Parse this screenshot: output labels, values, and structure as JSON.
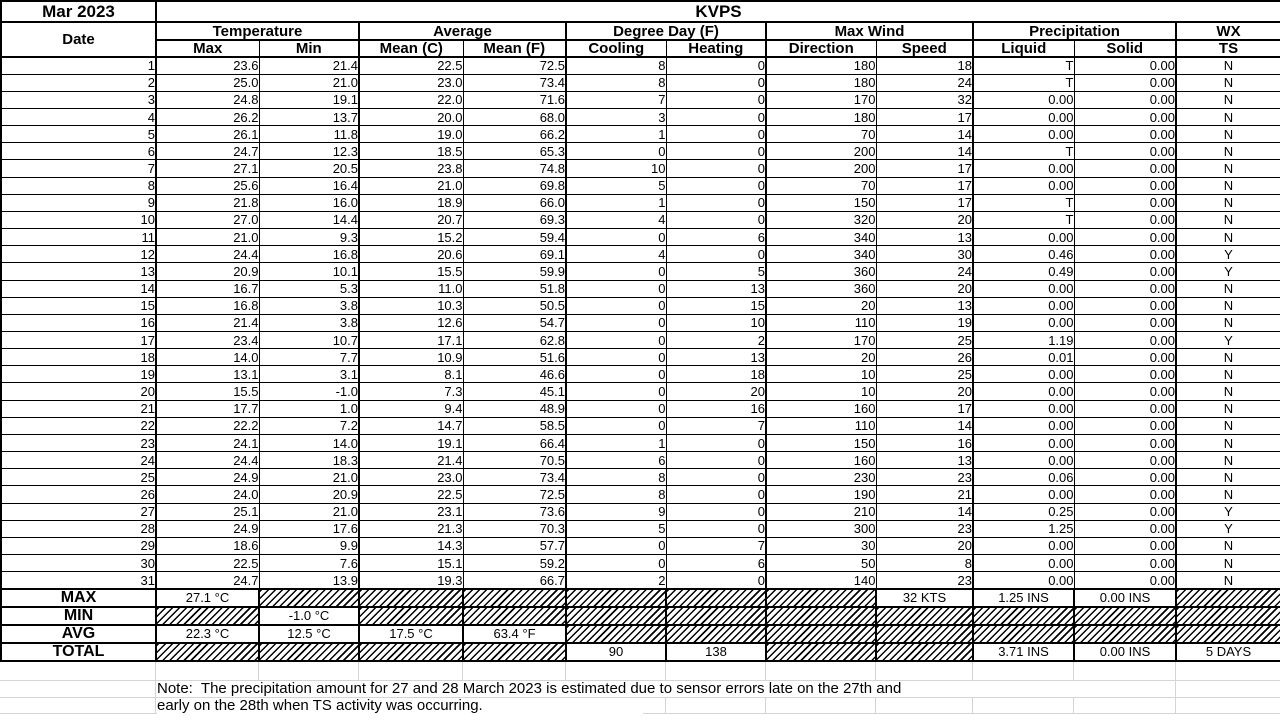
{
  "title": {
    "month": "Mar 2023",
    "station": "KVPS"
  },
  "columns": {
    "date": "Date",
    "groups": [
      {
        "label": "Temperature",
        "children": [
          "Max",
          "Min"
        ]
      },
      {
        "label": "Average",
        "children": [
          "Mean (C)",
          "Mean (F)"
        ]
      },
      {
        "label": "Degree Day (F)",
        "children": [
          "Cooling",
          "Heating"
        ]
      },
      {
        "label": "Max Wind",
        "children": [
          "Direction",
          "Speed"
        ]
      },
      {
        "label": "Precipitation",
        "children": [
          "Liquid",
          "Solid"
        ]
      },
      {
        "label": "WX",
        "children": [
          "TS"
        ]
      }
    ]
  },
  "days": [
    [
      "1",
      "23.6",
      "21.4",
      "22.5",
      "72.5",
      "8",
      "0",
      "180",
      "18",
      "T",
      "0.00",
      "N"
    ],
    [
      "2",
      "25.0",
      "21.0",
      "23.0",
      "73.4",
      "8",
      "0",
      "180",
      "24",
      "T",
      "0.00",
      "N"
    ],
    [
      "3",
      "24.8",
      "19.1",
      "22.0",
      "71.6",
      "7",
      "0",
      "170",
      "32",
      "0.00",
      "0.00",
      "N"
    ],
    [
      "4",
      "26.2",
      "13.7",
      "20.0",
      "68.0",
      "3",
      "0",
      "180",
      "17",
      "0.00",
      "0.00",
      "N"
    ],
    [
      "5",
      "26.1",
      "11.8",
      "19.0",
      "66.2",
      "1",
      "0",
      "70",
      "14",
      "0.00",
      "0.00",
      "N"
    ],
    [
      "6",
      "24.7",
      "12.3",
      "18.5",
      "65.3",
      "0",
      "0",
      "200",
      "14",
      "T",
      "0.00",
      "N"
    ],
    [
      "7",
      "27.1",
      "20.5",
      "23.8",
      "74.8",
      "10",
      "0",
      "200",
      "17",
      "0.00",
      "0.00",
      "N"
    ],
    [
      "8",
      "25.6",
      "16.4",
      "21.0",
      "69.8",
      "5",
      "0",
      "70",
      "17",
      "0.00",
      "0.00",
      "N"
    ],
    [
      "9",
      "21.8",
      "16.0",
      "18.9",
      "66.0",
      "1",
      "0",
      "150",
      "17",
      "T",
      "0.00",
      "N"
    ],
    [
      "10",
      "27.0",
      "14.4",
      "20.7",
      "69.3",
      "4",
      "0",
      "320",
      "20",
      "T",
      "0.00",
      "N"
    ],
    [
      "11",
      "21.0",
      "9.3",
      "15.2",
      "59.4",
      "0",
      "6",
      "340",
      "13",
      "0.00",
      "0.00",
      "N"
    ],
    [
      "12",
      "24.4",
      "16.8",
      "20.6",
      "69.1",
      "4",
      "0",
      "340",
      "30",
      "0.46",
      "0.00",
      "Y"
    ],
    [
      "13",
      "20.9",
      "10.1",
      "15.5",
      "59.9",
      "0",
      "5",
      "360",
      "24",
      "0.49",
      "0.00",
      "Y"
    ],
    [
      "14",
      "16.7",
      "5.3",
      "11.0",
      "51.8",
      "0",
      "13",
      "360",
      "20",
      "0.00",
      "0.00",
      "N"
    ],
    [
      "15",
      "16.8",
      "3.8",
      "10.3",
      "50.5",
      "0",
      "15",
      "20",
      "13",
      "0.00",
      "0.00",
      "N"
    ],
    [
      "16",
      "21.4",
      "3.8",
      "12.6",
      "54.7",
      "0",
      "10",
      "110",
      "19",
      "0.00",
      "0.00",
      "N"
    ],
    [
      "17",
      "23.4",
      "10.7",
      "17.1",
      "62.8",
      "0",
      "2",
      "170",
      "25",
      "1.19",
      "0.00",
      "Y"
    ],
    [
      "18",
      "14.0",
      "7.7",
      "10.9",
      "51.6",
      "0",
      "13",
      "20",
      "26",
      "0.01",
      "0.00",
      "N"
    ],
    [
      "19",
      "13.1",
      "3.1",
      "8.1",
      "46.6",
      "0",
      "18",
      "10",
      "25",
      "0.00",
      "0.00",
      "N"
    ],
    [
      "20",
      "15.5",
      "-1.0",
      "7.3",
      "45.1",
      "0",
      "20",
      "10",
      "20",
      "0.00",
      "0.00",
      "N"
    ],
    [
      "21",
      "17.7",
      "1.0",
      "9.4",
      "48.9",
      "0",
      "16",
      "160",
      "17",
      "0.00",
      "0.00",
      "N"
    ],
    [
      "22",
      "22.2",
      "7.2",
      "14.7",
      "58.5",
      "0",
      "7",
      "110",
      "14",
      "0.00",
      "0.00",
      "N"
    ],
    [
      "23",
      "24.1",
      "14.0",
      "19.1",
      "66.4",
      "1",
      "0",
      "150",
      "16",
      "0.00",
      "0.00",
      "N"
    ],
    [
      "24",
      "24.4",
      "18.3",
      "21.4",
      "70.5",
      "6",
      "0",
      "160",
      "13",
      "0.00",
      "0.00",
      "N"
    ],
    [
      "25",
      "24.9",
      "21.0",
      "23.0",
      "73.4",
      "8",
      "0",
      "230",
      "23",
      "0.06",
      "0.00",
      "N"
    ],
    [
      "26",
      "24.0",
      "20.9",
      "22.5",
      "72.5",
      "8",
      "0",
      "190",
      "21",
      "0.00",
      "0.00",
      "N"
    ],
    [
      "27",
      "25.1",
      "21.0",
      "23.1",
      "73.6",
      "9",
      "0",
      "210",
      "14",
      "0.25",
      "0.00",
      "Y"
    ],
    [
      "28",
      "24.9",
      "17.6",
      "21.3",
      "70.3",
      "5",
      "0",
      "300",
      "23",
      "1.25",
      "0.00",
      "Y"
    ],
    [
      "29",
      "18.6",
      "9.9",
      "14.3",
      "57.7",
      "0",
      "7",
      "30",
      "20",
      "0.00",
      "0.00",
      "N"
    ],
    [
      "30",
      "22.5",
      "7.6",
      "15.1",
      "59.2",
      "0",
      "6",
      "50",
      "8",
      "0.00",
      "0.00",
      "N"
    ],
    [
      "31",
      "24.7",
      "13.9",
      "19.3",
      "66.7",
      "2",
      "0",
      "140",
      "23",
      "0.00",
      "0.00",
      "N"
    ]
  ],
  "summary": {
    "max": {
      "label": "MAX",
      "max_temp": "27.1 °C",
      "speed": "32 KTS",
      "liquid": "1.25 INS",
      "solid": "0.00 INS"
    },
    "min": {
      "label": "MIN",
      "min_temp": "-1.0 °C"
    },
    "avg": {
      "label": "AVG",
      "max_temp": "22.3 °C",
      "min_temp": "12.5 °C",
      "mean_c": "17.5 °C",
      "mean_f": "63.4 °F"
    },
    "total": {
      "label": "TOTAL",
      "cooling": "90",
      "heating": "138",
      "liquid": "3.71 INS",
      "solid": "0.00 INS",
      "wx_days": "5 DAYS"
    }
  },
  "note": {
    "line1": "Note:  The precipitation amount for 27 and 28 March 2023 is estimated due to sensor errors late on the 27th and",
    "line2": "early on the 28th when TS activity was occurring."
  }
}
